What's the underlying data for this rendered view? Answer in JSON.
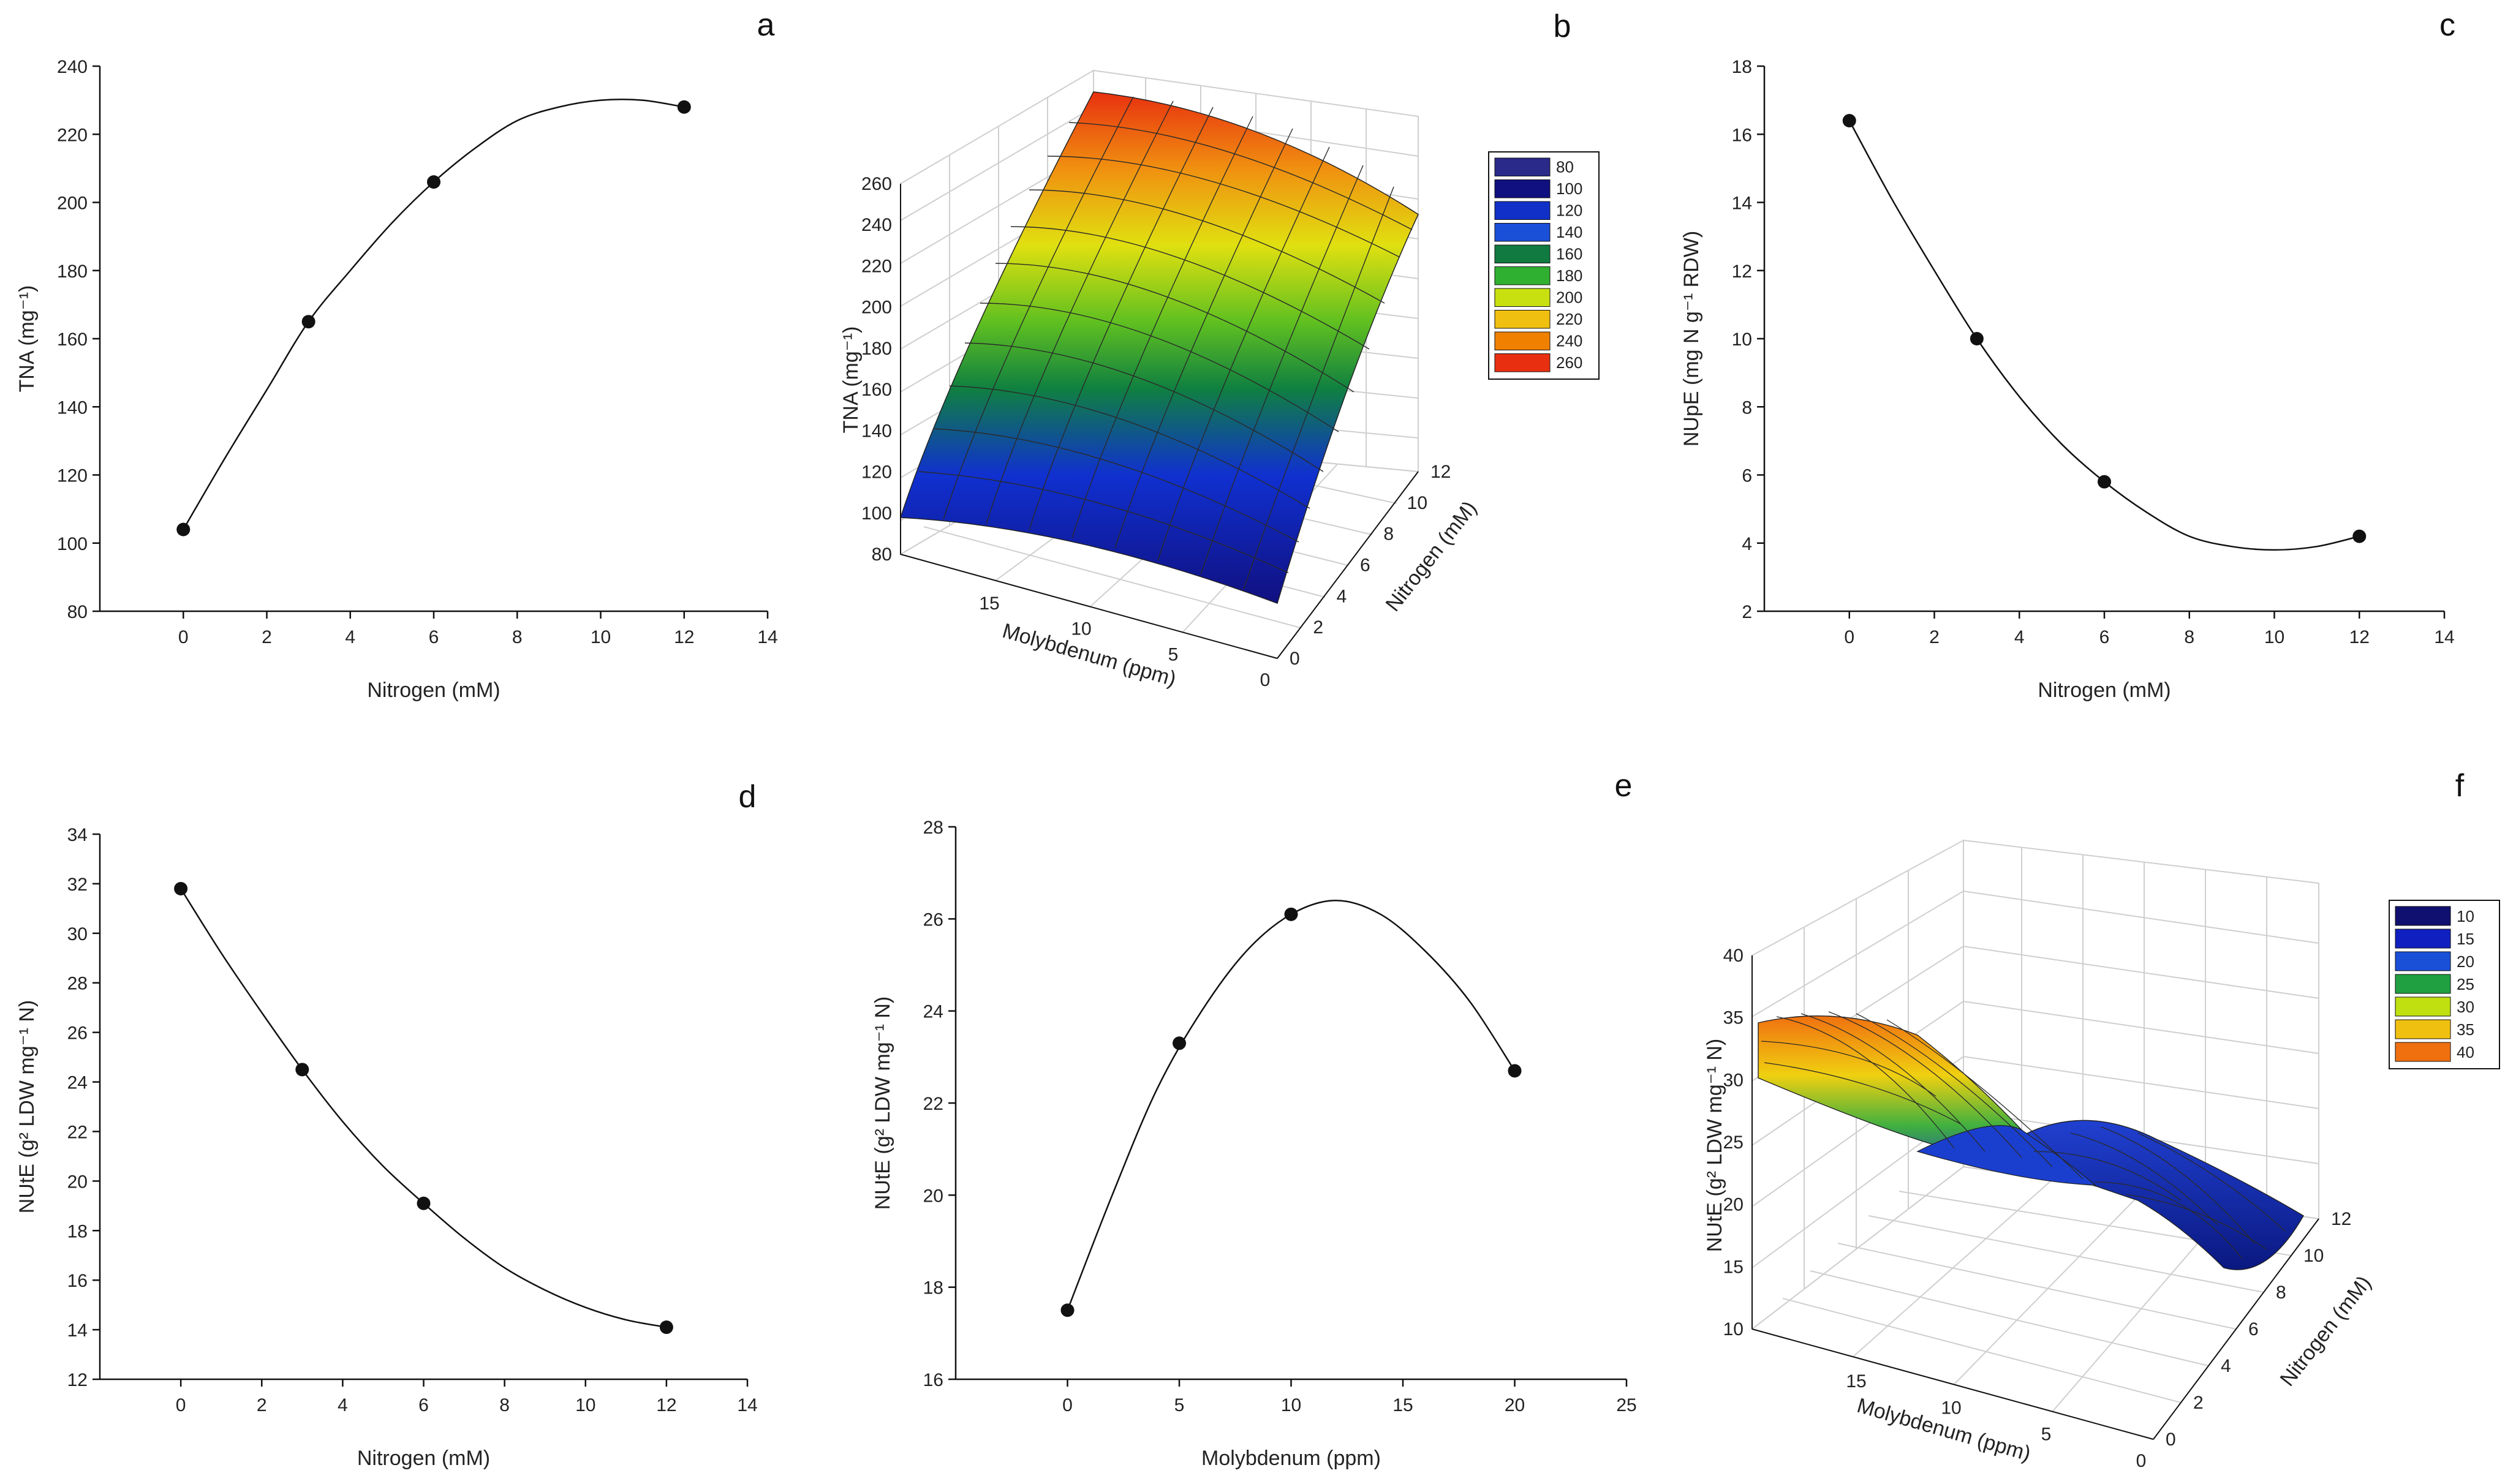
{
  "figure": {
    "panels": {
      "a": {
        "letter": "a"
      },
      "b": {
        "letter": "b"
      },
      "c": {
        "letter": "c"
      },
      "d": {
        "letter": "d"
      },
      "e": {
        "letter": "e"
      },
      "f": {
        "letter": "f"
      }
    }
  },
  "chart_data": [
    {
      "id": "a",
      "type": "line",
      "xlabel": "Nitrogen (mM)",
      "ylabel": "TNA (mg⁻¹)",
      "xlim": [
        -2,
        14
      ],
      "ylim": [
        80,
        240
      ],
      "xticks": [
        0,
        2,
        4,
        6,
        8,
        10,
        12,
        14
      ],
      "yticks": [
        80,
        100,
        120,
        140,
        160,
        180,
        200,
        220,
        240
      ],
      "points": {
        "x": [
          0,
          3,
          6,
          12
        ],
        "y": [
          104,
          165,
          206,
          228
        ]
      },
      "fit": {
        "x": [
          0,
          1,
          2,
          3,
          4,
          5,
          6,
          7,
          8,
          9,
          10,
          11,
          12
        ],
        "y": [
          104,
          125,
          145,
          165,
          180,
          194,
          206,
          216,
          224,
          228,
          230,
          230,
          228
        ]
      }
    },
    {
      "id": "b",
      "type": "surface",
      "zlabel": "TNA (mg⁻¹)",
      "xlabel": "Molybdenum (ppm)",
      "ylabel": "Nitrogen (mM)",
      "zticks": [
        "80",
        "100",
        "120",
        "140",
        "160",
        "180",
        "200",
        "220",
        "240",
        "260"
      ],
      "xticks": [
        "15",
        "10",
        "5",
        "0"
      ],
      "yticks": [
        "0",
        "2",
        "4",
        "6",
        "8",
        "10",
        "12"
      ],
      "legend": {
        "values": [
          "80",
          "100",
          "120",
          "140",
          "160",
          "180",
          "200",
          "220",
          "240",
          "260"
        ],
        "colors": [
          "#2a2a8a",
          "#101080",
          "#1030c8",
          "#1a4fd8",
          "#107a40",
          "#30b030",
          "#c8e010",
          "#f0c010",
          "#f08000",
          "#e83010"
        ]
      }
    },
    {
      "id": "c",
      "type": "line",
      "xlabel": "Nitrogen (mM)",
      "ylabel": "NUpE (mg N g⁻¹ RDW)",
      "xlim": [
        -2,
        14
      ],
      "ylim": [
        2,
        18
      ],
      "xticks": [
        0,
        2,
        4,
        6,
        8,
        10,
        12,
        14
      ],
      "yticks": [
        2,
        4,
        6,
        8,
        10,
        12,
        14,
        16,
        18
      ],
      "points": {
        "x": [
          0,
          3,
          6,
          12
        ],
        "y": [
          16.4,
          10.0,
          5.8,
          4.2
        ]
      },
      "fit": {
        "x": [
          0,
          1,
          2,
          3,
          4,
          5,
          6,
          7,
          8,
          9,
          10,
          11,
          12
        ],
        "y": [
          16.4,
          14.1,
          12.0,
          10.0,
          8.3,
          6.9,
          5.8,
          4.9,
          4.2,
          3.9,
          3.8,
          3.9,
          4.2
        ]
      }
    },
    {
      "id": "d",
      "type": "line",
      "xlabel": "Nitrogen (mM)",
      "ylabel": "NUtE (g² LDW mg⁻¹ N)",
      "xlim": [
        -2,
        14
      ],
      "ylim": [
        12,
        34
      ],
      "xticks": [
        0,
        2,
        4,
        6,
        8,
        10,
        12,
        14
      ],
      "yticks": [
        12,
        14,
        16,
        18,
        20,
        22,
        24,
        26,
        28,
        30,
        32,
        34
      ],
      "points": {
        "x": [
          0,
          3,
          6,
          12
        ],
        "y": [
          31.8,
          24.5,
          19.1,
          14.1
        ]
      },
      "fit": {
        "x": [
          0,
          1,
          2,
          3,
          4,
          5,
          6,
          7,
          8,
          9,
          10,
          11,
          12
        ],
        "y": [
          31.8,
          29.2,
          26.8,
          24.5,
          22.4,
          20.6,
          19.1,
          17.7,
          16.5,
          15.6,
          14.9,
          14.4,
          14.1
        ]
      }
    },
    {
      "id": "e",
      "type": "line",
      "xlabel": "Molybdenum (ppm)",
      "ylabel": "NUtE (g² LDW mg⁻¹ N)",
      "xlim": [
        -5,
        25
      ],
      "ylim": [
        16,
        28
      ],
      "xticks": [
        0,
        5,
        10,
        15,
        20,
        25
      ],
      "yticks": [
        16,
        18,
        20,
        22,
        24,
        26,
        28
      ],
      "points": {
        "x": [
          0,
          5,
          10,
          20
        ],
        "y": [
          17.5,
          23.3,
          26.1,
          22.7
        ]
      },
      "fit": {
        "x": [
          0,
          2,
          4,
          6,
          8,
          10,
          12,
          14,
          16,
          18,
          20
        ],
        "y": [
          17.5,
          20.0,
          22.3,
          24.0,
          25.3,
          26.1,
          26.4,
          26.1,
          25.3,
          24.2,
          22.7
        ]
      }
    },
    {
      "id": "f",
      "type": "surface",
      "zlabel": "NUtE (g² LDW mg⁻¹ N)",
      "xlabel": "Molybdenum (ppm)",
      "ylabel": "Nitrogen (mM)",
      "zticks": [
        "10",
        "15",
        "20",
        "25",
        "30",
        "35",
        "40"
      ],
      "xticks": [
        "15",
        "10",
        "5",
        "0"
      ],
      "yticks": [
        "0",
        "2",
        "4",
        "6",
        "8",
        "10",
        "12"
      ],
      "legend": {
        "values": [
          "10",
          "15",
          "20",
          "25",
          "30",
          "35",
          "40"
        ],
        "colors": [
          "#101070",
          "#1020c0",
          "#1a50d8",
          "#20a040",
          "#c0e010",
          "#f0c010",
          "#f07010"
        ]
      }
    }
  ]
}
